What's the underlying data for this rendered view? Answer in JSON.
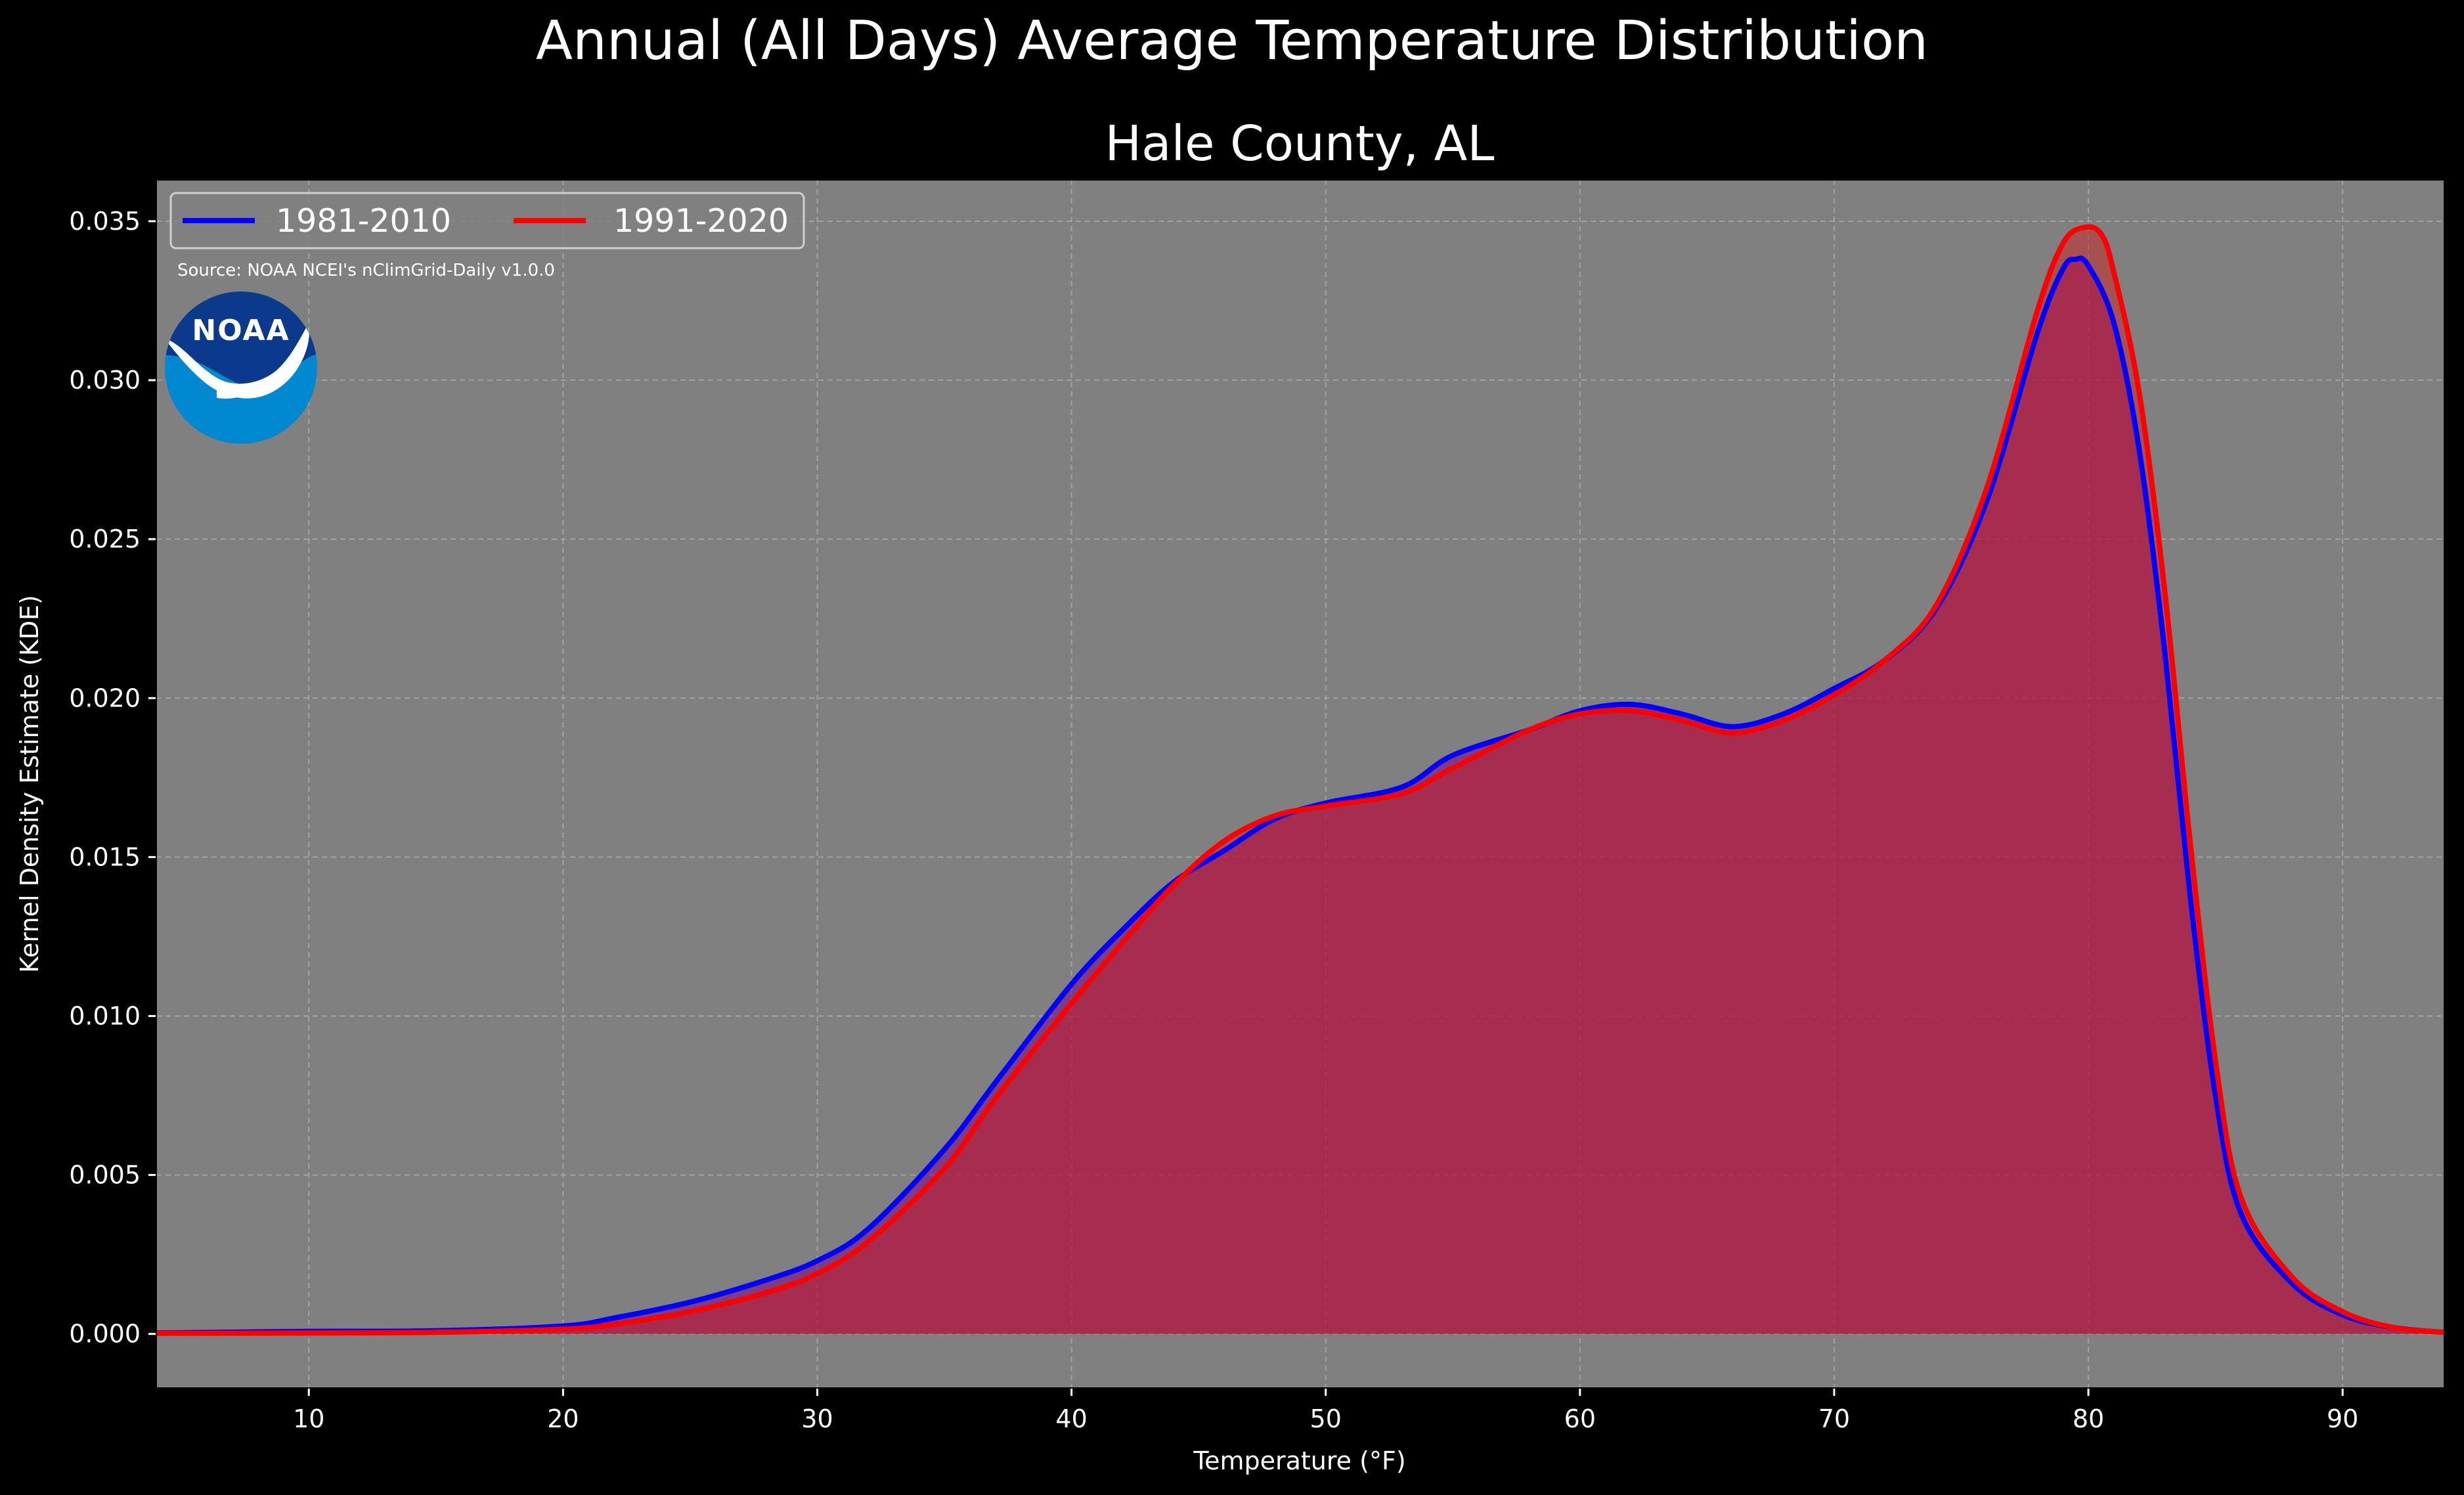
{
  "figure": {
    "suptitle": "Annual (All Days) Average Temperature Distribution",
    "background": "#000000"
  },
  "source_note": "Source: NOAA NCEI's nClimGrid-Daily v1.0.0",
  "logo": {
    "text": "NOAA",
    "colors": {
      "dark": "#0b3a8c",
      "light": "#0088d1",
      "wave": "#ffffff"
    }
  },
  "legend": {
    "items": [
      {
        "label": "1981-2010",
        "color": "#0000ff"
      },
      {
        "label": "1991-2020",
        "color": "#ff0000"
      }
    ],
    "placement": "top-left"
  },
  "chart_data": {
    "type": "area",
    "title": "Hale County, AL",
    "xlabel": "Temperature ($^\\circ$F)",
    "xlabel_display": "Temperature (°F)",
    "ylabel": "Kernel Density Estimate (KDE)",
    "xlim": [
      4,
      94
    ],
    "ylim": [
      -0.0017,
      0.0363
    ],
    "xticks": [
      10,
      20,
      30,
      40,
      50,
      60,
      70,
      80,
      90
    ],
    "xtick_labels": [
      "10",
      "20",
      "30",
      "40",
      "50",
      "60",
      "70",
      "80",
      "90"
    ],
    "yticks": [
      0.0,
      0.005,
      0.01,
      0.015,
      0.02,
      0.025,
      0.03,
      0.035
    ],
    "ytick_labels": [
      "0.000",
      "0.005",
      "0.010",
      "0.015",
      "0.020",
      "0.025",
      "0.030",
      "0.035"
    ],
    "grid": true,
    "plot_background": "#808080",
    "series": [
      {
        "name": "1981-2010",
        "color": "#0000ff",
        "fill": "#800080",
        "x": [
          4,
          10,
          15,
          20,
          22,
          25,
          28,
          30,
          32,
          35,
          37,
          40,
          42,
          44,
          46,
          48,
          50,
          53,
          55,
          58,
          60,
          62,
          64,
          66,
          68,
          70,
          72,
          74,
          76,
          78,
          79,
          79.5,
          80,
          81,
          82,
          83,
          84,
          85,
          86,
          88,
          90,
          92,
          94
        ],
        "y": [
          3e-05,
          8e-05,
          0.0001,
          0.00025,
          0.0005,
          0.001,
          0.0017,
          0.0023,
          0.0033,
          0.0058,
          0.0079,
          0.011,
          0.0127,
          0.0142,
          0.0152,
          0.0162,
          0.0167,
          0.0172,
          0.0182,
          0.019,
          0.0196,
          0.0198,
          0.0195,
          0.0191,
          0.0195,
          0.0203,
          0.0212,
          0.0228,
          0.0262,
          0.0315,
          0.0335,
          0.0338,
          0.0336,
          0.0318,
          0.0278,
          0.0215,
          0.0138,
          0.0075,
          0.0038,
          0.0016,
          0.0006,
          0.0002,
          5e-05
        ]
      },
      {
        "name": "1991-2020",
        "color": "#ff0000",
        "fill": "#cc2020",
        "x": [
          4,
          10,
          15,
          20,
          22,
          25,
          28,
          30,
          32,
          35,
          37,
          40,
          42,
          44,
          46,
          48,
          50,
          53,
          55,
          58,
          60,
          62,
          64,
          66,
          68,
          70,
          72,
          74,
          76,
          78,
          79,
          79.8,
          80.5,
          81,
          82,
          83,
          84,
          85,
          86,
          88,
          90,
          92,
          94
        ],
        "y": [
          2e-05,
          3e-05,
          5e-05,
          0.00015,
          0.0003,
          0.0007,
          0.0013,
          0.0019,
          0.0029,
          0.0052,
          0.0074,
          0.0104,
          0.0123,
          0.0141,
          0.0155,
          0.0163,
          0.0166,
          0.017,
          0.0178,
          0.019,
          0.0195,
          0.0196,
          0.0193,
          0.0189,
          0.0193,
          0.0201,
          0.0212,
          0.0229,
          0.0266,
          0.0322,
          0.0343,
          0.0348,
          0.0346,
          0.0334,
          0.0296,
          0.0234,
          0.0155,
          0.0086,
          0.0043,
          0.0018,
          0.0007,
          0.0002,
          5e-05
        ]
      }
    ]
  }
}
